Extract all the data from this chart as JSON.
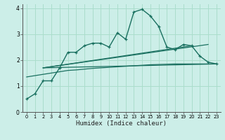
{
  "background_color": "#cceee8",
  "grid_color": "#aaddcc",
  "line_color": "#1a7060",
  "xlabel": "Humidex (Indice chaleur)",
  "xlim": [
    -0.5,
    23.5
  ],
  "ylim": [
    0,
    4.15
  ],
  "xticks": [
    0,
    1,
    2,
    3,
    4,
    5,
    6,
    7,
    8,
    9,
    10,
    11,
    12,
    13,
    14,
    15,
    16,
    17,
    18,
    19,
    20,
    21,
    22,
    23
  ],
  "yticks": [
    0,
    1,
    2,
    3,
    4
  ],
  "curve1_x": [
    0,
    1,
    2,
    3,
    4,
    5,
    6,
    7,
    8,
    9,
    10,
    11,
    12,
    13,
    14,
    15,
    16,
    17,
    18,
    19,
    20,
    21,
    22,
    23
  ],
  "curve1_y": [
    0.5,
    0.7,
    1.2,
    1.2,
    1.7,
    2.3,
    2.3,
    2.55,
    2.65,
    2.65,
    2.5,
    3.05,
    2.8,
    3.85,
    3.95,
    3.7,
    3.3,
    2.5,
    2.4,
    2.6,
    2.55,
    2.15,
    1.92,
    1.85
  ],
  "curve2_x": [
    0,
    1,
    2,
    3,
    4,
    5,
    6,
    7,
    8,
    9,
    10,
    11,
    12,
    13,
    14,
    15,
    16,
    17,
    18,
    19,
    20,
    21,
    22,
    23
  ],
  "curve2_y": [
    1.35,
    1.4,
    1.45,
    1.5,
    1.55,
    1.6,
    1.62,
    1.65,
    1.68,
    1.7,
    1.72,
    1.74,
    1.76,
    1.78,
    1.8,
    1.82,
    1.83,
    1.84,
    1.85,
    1.85,
    1.85,
    1.85,
    1.85,
    1.85
  ],
  "line3_x": [
    2,
    23
  ],
  "line3_y": [
    1.7,
    1.85
  ],
  "line4_x": [
    2,
    20
  ],
  "line4_y": [
    1.7,
    2.55
  ],
  "line5_x": [
    2,
    22
  ],
  "line5_y": [
    1.7,
    2.6
  ]
}
